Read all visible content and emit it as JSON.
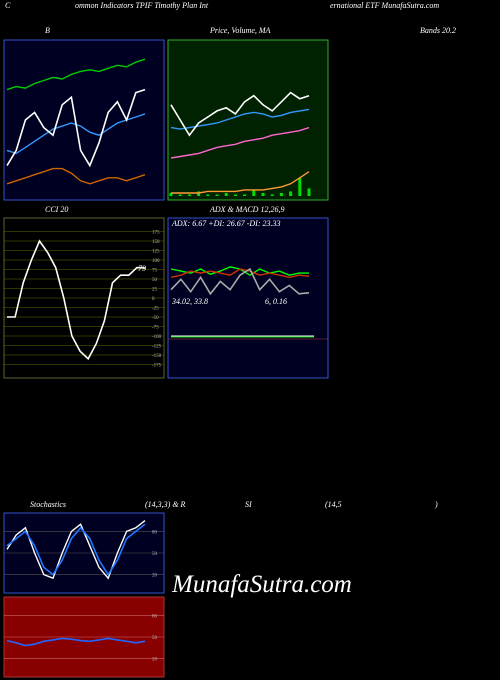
{
  "header": [
    "C",
    "ommon  Indicators TPIF Timothy Plan Int",
    "ernational ETF MunafaSutra.com"
  ],
  "watermark": "MunafaSutra.com",
  "chart_data": [
    {
      "type": "line",
      "title_parts": [
        "B",
        "Bands 20.2"
      ],
      "ylim": [
        0,
        100
      ],
      "series": [
        {
          "color": "#00cc00",
          "values": [
            70,
            72,
            71,
            74,
            76,
            78,
            77,
            80,
            82,
            83,
            82,
            84,
            86,
            85,
            88,
            90
          ]
        },
        {
          "color": "#3399ff",
          "values": [
            30,
            28,
            32,
            36,
            40,
            44,
            46,
            48,
            46,
            42,
            40,
            44,
            48,
            50,
            52,
            54
          ]
        },
        {
          "color": "#cc6600",
          "values": [
            8,
            10,
            12,
            14,
            16,
            18,
            18,
            15,
            10,
            8,
            10,
            12,
            12,
            10,
            12,
            14
          ]
        },
        {
          "color": "#ffffff",
          "values": [
            20,
            30,
            50,
            55,
            45,
            40,
            60,
            65,
            30,
            20,
            35,
            55,
            62,
            50,
            68,
            70
          ]
        }
      ]
    },
    {
      "type": "line",
      "title_parts": [
        "Price, Volume, MA"
      ],
      "ylim": [
        0,
        100
      ],
      "volume": [
        2,
        1,
        1,
        3,
        1,
        1,
        2,
        1,
        1,
        4,
        2,
        1,
        2,
        3,
        12,
        5
      ],
      "volume_color": "#00dd00",
      "series": [
        {
          "color": "#3399ff",
          "values": [
            45,
            44,
            45,
            46,
            47,
            48,
            50,
            52,
            54,
            55,
            54,
            52,
            53,
            55,
            56,
            57
          ]
        },
        {
          "color": "#ff66cc",
          "values": [
            25,
            26,
            27,
            28,
            30,
            32,
            33,
            34,
            36,
            37,
            38,
            40,
            41,
            42,
            43,
            45
          ]
        },
        {
          "color": "#ff9933",
          "values": [
            2,
            2,
            2,
            2,
            3,
            3,
            3,
            3,
            4,
            4,
            4,
            5,
            6,
            8,
            12,
            16
          ]
        },
        {
          "color": "#ffffff",
          "values": [
            60,
            50,
            40,
            48,
            52,
            56,
            58,
            54,
            62,
            66,
            60,
            56,
            62,
            68,
            64,
            66
          ]
        }
      ]
    },
    {
      "type": "line",
      "title_parts": [
        "CCI 20"
      ],
      "ylim": [
        -200,
        200
      ],
      "yticks": [
        175,
        150,
        125,
        100,
        75,
        50,
        25,
        0,
        -25,
        -50,
        -75,
        -100,
        -125,
        -150,
        -175
      ],
      "last_value": 79,
      "series": [
        {
          "color": "#ffffff",
          "values": [
            -50,
            -50,
            40,
            100,
            150,
            120,
            80,
            0,
            -100,
            -140,
            -160,
            -120,
            -60,
            40,
            60,
            60,
            80,
            79
          ]
        }
      ]
    },
    {
      "type": "line",
      "title_parts": [
        "ADX & MACD 12,26,9",
        "ADX: 6.67 +DI: 26.67 -DI: 23.33",
        "34.02,  33.8",
        "6,  0.16"
      ],
      "ylim": [
        0,
        60
      ],
      "series": [
        {
          "color": "#00ff00",
          "values": [
            30,
            28,
            26,
            30,
            25,
            28,
            32,
            30,
            24,
            30,
            26,
            28,
            24,
            26,
            26
          ]
        },
        {
          "color": "#cc3300",
          "values": [
            22,
            24,
            28,
            26,
            28,
            26,
            24,
            30,
            28,
            24,
            26,
            24,
            22,
            24,
            23
          ]
        },
        {
          "color": "#aaaaaa",
          "values": [
            10,
            20,
            8,
            22,
            6,
            18,
            10,
            24,
            30,
            10,
            20,
            8,
            14,
            6,
            7
          ]
        }
      ]
    },
    {
      "type": "line",
      "title_parts": [
        "Stochastics",
        "(14,3,3) & R",
        "SI",
        "(14,5",
        ")"
      ],
      "ylim": [
        0,
        100
      ],
      "yticks": [
        80,
        50,
        20
      ],
      "series": [
        {
          "color": "#ffffff",
          "values": [
            55,
            75,
            85,
            50,
            20,
            15,
            50,
            80,
            90,
            60,
            30,
            15,
            50,
            80,
            85,
            95
          ]
        },
        {
          "color": "#2277ff",
          "values": [
            60,
            70,
            80,
            60,
            30,
            20,
            40,
            70,
            85,
            70,
            40,
            20,
            40,
            70,
            80,
            90
          ]
        }
      ]
    },
    {
      "type": "line",
      "title_parts": [],
      "ylim": [
        0,
        100
      ],
      "yticks": [
        80,
        50,
        20
      ],
      "series": [
        {
          "color": "#2266ff",
          "values": [
            45,
            42,
            38,
            40,
            44,
            46,
            48,
            47,
            45,
            44,
            46,
            48,
            46,
            44,
            42,
            44
          ]
        }
      ]
    }
  ]
}
